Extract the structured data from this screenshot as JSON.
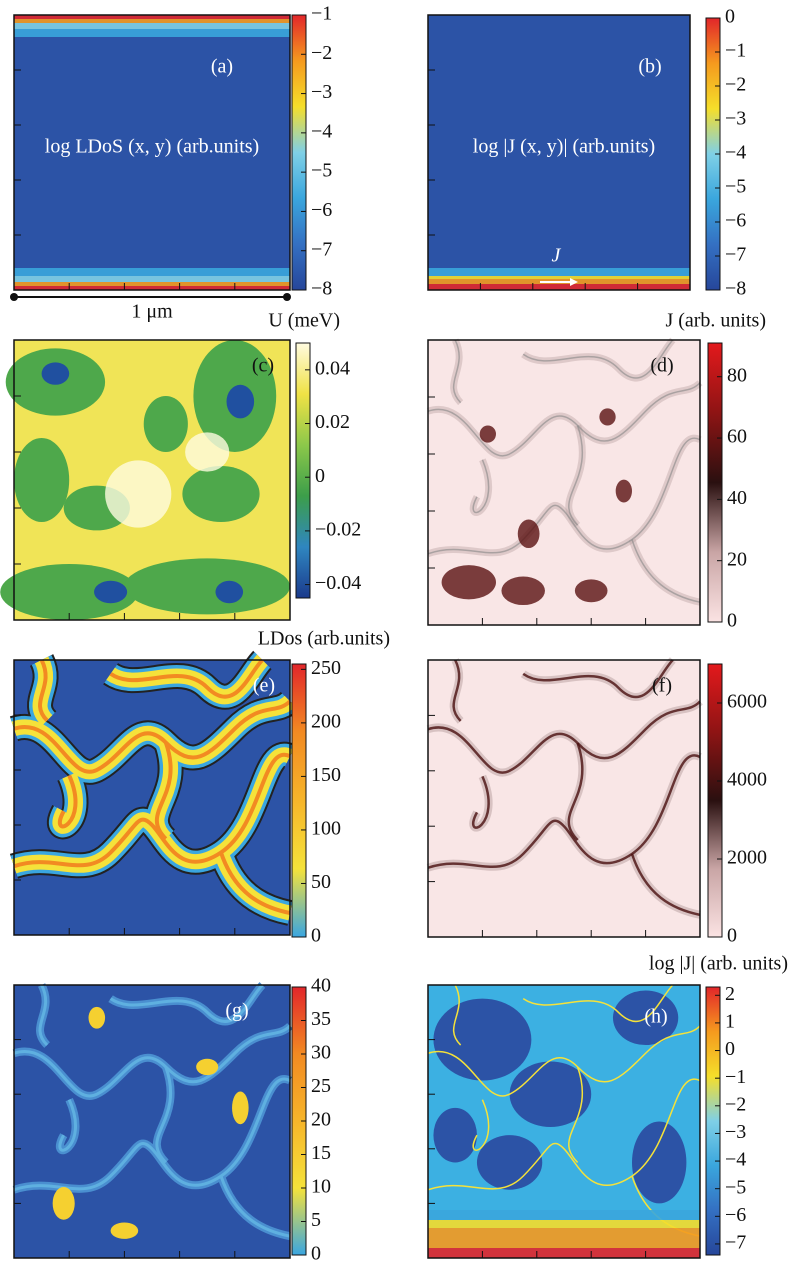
{
  "chart_data": [
    {
      "type": "heatmap",
      "panel_label": "(a)",
      "annotation": "log LDoS (x, y) (arb.units)",
      "scale_bar": "1 μm",
      "clim": [
        -8,
        -1
      ],
      "colorbar_ticks": [
        {
          "value": -1,
          "label": "−1"
        },
        {
          "value": -2,
          "label": "−2"
        },
        {
          "value": -3,
          "label": "−3"
        },
        {
          "value": -4,
          "label": "−4"
        },
        {
          "value": -5,
          "label": "−5"
        },
        {
          "value": -6,
          "label": "−6"
        },
        {
          "value": -7,
          "label": "−7"
        },
        {
          "value": -8,
          "label": "−8"
        }
      ],
      "colormap": [
        "#26469a",
        "#3470c2",
        "#3aa6dd",
        "#7fd0e6",
        "#f5de2a",
        "#f59a1e",
        "#e2262a"
      ]
    },
    {
      "type": "heatmap",
      "panel_label": "(b)",
      "annotation": "log |J (x, y)| (arb.units)",
      "current_label": "J",
      "clim": [
        -8,
        0
      ],
      "colorbar_ticks": [
        0,
        {
          "value": -1,
          "label": "−1"
        },
        {
          "value": -2,
          "label": "−2"
        },
        {
          "value": -3,
          "label": "−3"
        },
        {
          "value": -4,
          "label": "−4"
        },
        {
          "value": -5,
          "label": "−5"
        },
        {
          "value": -6,
          "label": "−6"
        },
        {
          "value": -7,
          "label": "−7"
        },
        {
          "value": -8,
          "label": "−8"
        }
      ],
      "colormap": [
        "#26469a",
        "#3470c2",
        "#3aa6dd",
        "#7fd0e6",
        "#f5de2a",
        "#f59a1e",
        "#e2262a"
      ]
    },
    {
      "type": "heatmap",
      "panel_label": "(c)",
      "colorbar_label": "U (meV)",
      "clim": [
        -0.045,
        0.05
      ],
      "colorbar_ticks": [
        0.04,
        0.02,
        0,
        {
          "value": -0.02,
          "label": "−0.02"
        },
        {
          "value": -0.04,
          "label": "−0.04"
        }
      ],
      "colormap": [
        "#1b3a8c",
        "#2f86c0",
        "#3c9e4a",
        "#8cc84a",
        "#f0e245",
        "#fffbe0"
      ]
    },
    {
      "type": "heatmap",
      "panel_label": "(d)",
      "colorbar_label": "J (arb. units)",
      "clim": [
        0,
        91
      ],
      "colorbar_ticks": [
        80,
        60,
        40,
        20,
        0
      ],
      "colormap": [
        "#fbe3e3",
        "#c9a5a5",
        "#2a1010",
        "#8e1414",
        "#e3191c"
      ]
    },
    {
      "type": "heatmap",
      "panel_label": "(e)",
      "colorbar_label": "LDos (arb.units)",
      "clim": [
        0,
        255
      ],
      "colorbar_ticks": [
        250,
        200,
        150,
        100,
        50,
        0
      ],
      "colormap": [
        "#3aa6e0",
        "#f5e23a",
        "#f6b52a",
        "#f28a22",
        "#e2262a"
      ]
    },
    {
      "type": "heatmap",
      "panel_label": "(f)",
      "clim": [
        0,
        7000
      ],
      "colorbar_ticks": [
        6000,
        4000,
        2000,
        0
      ],
      "colormap": [
        "#fbe3e3",
        "#c9a5a5",
        "#2a1010",
        "#8e1414",
        "#e3191c"
      ]
    },
    {
      "type": "heatmap",
      "panel_label": "(g)",
      "clim": [
        0,
        40
      ],
      "colorbar_ticks": [
        40,
        35,
        30,
        25,
        20,
        15,
        10,
        5,
        0
      ],
      "colormap": [
        "#3aa6e0",
        "#f5e23a",
        "#f6b52a",
        "#f28a22",
        "#e2262a"
      ]
    },
    {
      "type": "heatmap",
      "panel_label": "(h)",
      "colorbar_label": "log |J| (arb. units)",
      "clim": [
        -7.4,
        2.3
      ],
      "colorbar_ticks": [
        2,
        1,
        0,
        {
          "value": -1,
          "label": "−1"
        },
        {
          "value": -2,
          "label": "−2"
        },
        {
          "value": -3,
          "label": "−3"
        },
        {
          "value": -4,
          "label": "−4"
        },
        {
          "value": -5,
          "label": "−5"
        },
        {
          "value": -6,
          "label": "−6"
        },
        {
          "value": -7,
          "label": "−7"
        }
      ],
      "colormap": [
        "#26469a",
        "#3470c2",
        "#3aa6dd",
        "#7fd0e6",
        "#f5de2a",
        "#f59a1e",
        "#e2262a"
      ]
    }
  ]
}
